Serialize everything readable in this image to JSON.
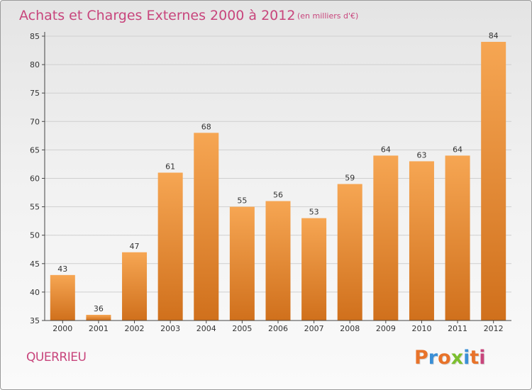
{
  "header": {
    "title": "Achats et Charges Externes 2000 à 2012",
    "subtitle": "(en milliers d'€)"
  },
  "footer": {
    "commune": "QUERRIEU",
    "logo_text": "Proxiti",
    "logo_colors": [
      "#e8732a",
      "#3a8fd6",
      "#e8732a",
      "#7cbf2f",
      "#3a8fd6",
      "#e8732a",
      "#c8457c"
    ]
  },
  "colors": {
    "bar_light": "#f6a653",
    "bar_dark": "#d0701c",
    "accent": "#c8457c"
  },
  "chart_data": {
    "type": "bar",
    "title": "Achats et Charges Externes 2000 à 2012",
    "subtitle": "(en milliers d'€)",
    "xlabel": "",
    "ylabel": "",
    "categories": [
      "2000",
      "2001",
      "2002",
      "2003",
      "2004",
      "2005",
      "2006",
      "2007",
      "2008",
      "2009",
      "2010",
      "2011",
      "2012"
    ],
    "values": [
      43,
      36,
      47,
      61,
      68,
      55,
      56,
      53,
      59,
      64,
      63,
      64,
      84
    ],
    "ylim": [
      35,
      85
    ],
    "yticks": [
      35,
      40,
      45,
      50,
      55,
      60,
      65,
      70,
      75,
      80,
      85
    ],
    "grid": true,
    "data_labels": true
  }
}
